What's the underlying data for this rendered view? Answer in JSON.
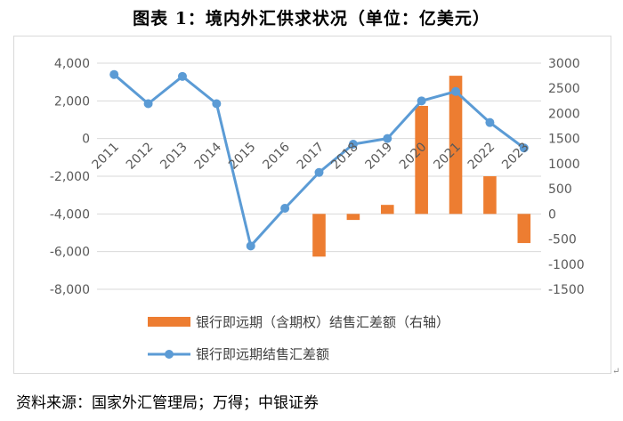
{
  "figure": {
    "title": "图表 1：境内外汇供求状况（单位：亿美元）",
    "source": "资料来源：国家外汇管理局；万得；中银证券",
    "para_mark": "↵"
  },
  "chart_data": {
    "type": "bar+line",
    "title": "图表 1：境内外汇供求状况（单位：亿美元）",
    "categories": [
      "2011",
      "2012",
      "2013",
      "2014",
      "2015",
      "2016",
      "2017",
      "2018",
      "2019",
      "2020",
      "2021",
      "2022",
      "2023"
    ],
    "left_axis": {
      "ylim": [
        -8000,
        4000
      ],
      "ticks": [
        4000,
        2000,
        0,
        -2000,
        -4000,
        -6000,
        -8000
      ],
      "tick_labels": [
        "4,000",
        "2,000",
        "0",
        "-2,000",
        "-4,000",
        "-6,000",
        "-8,000"
      ]
    },
    "right_axis": {
      "ylim": [
        -1500,
        3000
      ],
      "ticks": [
        3000,
        2500,
        2000,
        1500,
        1000,
        500,
        0,
        -500,
        -1000,
        -1500
      ],
      "tick_labels": [
        "3000",
        "2500",
        "2000",
        "1500",
        "1000",
        "500",
        "0",
        "-500",
        "-1000",
        "-1500"
      ]
    },
    "series": [
      {
        "name": "银行即远期（含期权）结售汇差额（右轴）",
        "type": "bar",
        "axis": "right",
        "color": "#ED7D31",
        "values": [
          null,
          null,
          null,
          null,
          null,
          null,
          -850,
          -120,
          180,
          2150,
          2750,
          750,
          -580
        ]
      },
      {
        "name": "银行即远期结售汇差额",
        "type": "line",
        "axis": "left",
        "color": "#5B9BD5",
        "values": [
          3400,
          1850,
          3300,
          1850,
          -5700,
          -3700,
          -1800,
          -300,
          3,
          2000,
          2500,
          850,
          -500
        ]
      }
    ]
  }
}
